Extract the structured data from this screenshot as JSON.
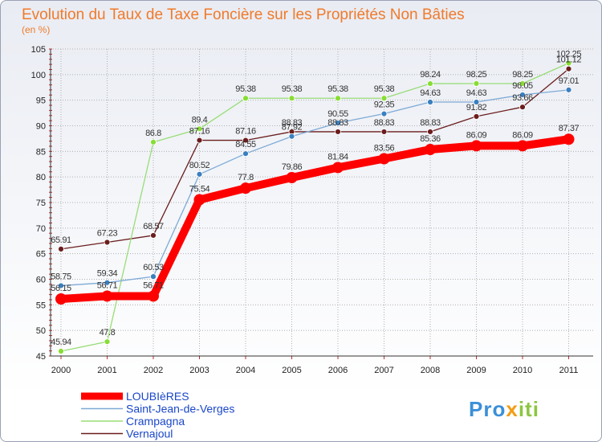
{
  "chart_data": {
    "type": "line",
    "title": "Evolution du Taux de Taxe Foncière sur les Propriétés Non Bâties",
    "subtitle": "(en %)",
    "categories": [
      "2000",
      "2001",
      "2002",
      "2003",
      "2004",
      "2005",
      "2006",
      "2007",
      "2008",
      "2009",
      "2010",
      "2011"
    ],
    "ylim": [
      45,
      105
    ],
    "yticks": [
      "45",
      "50",
      "55",
      "60",
      "65",
      "70",
      "75",
      "80",
      "85",
      "90",
      "95",
      "100",
      "105"
    ],
    "grid": true,
    "legend_position": "bottom-left",
    "series": [
      {
        "name": "Vernajoul",
        "color": "#6b1d1d",
        "point_color": "#6b1d1d",
        "values": [
          65.91,
          67.23,
          68.57,
          87.16,
          87.16,
          88.83,
          88.83,
          88.83,
          88.83,
          91.82,
          93.66,
          101.12
        ],
        "labels": [
          "65.91",
          "67.23",
          "68.57",
          "87.16",
          "87.16",
          "88.83",
          "88.83",
          "88.83",
          "88.83",
          "91.82",
          "93.66",
          "101.12"
        ]
      },
      {
        "name": "Crampagna",
        "color": "#99dd77",
        "point_color": "#88dd33",
        "values": [
          45.94,
          47.8,
          86.8,
          89.4,
          95.38,
          95.38,
          95.38,
          95.38,
          98.24,
          98.25,
          98.25,
          102.25
        ],
        "labels": [
          "45.94",
          "47.8",
          "86.8",
          "89.4",
          "95.38",
          "95.38",
          "95.38",
          "95.38",
          "98.24",
          "98.25",
          "98.25",
          "102.25"
        ]
      },
      {
        "name": "Saint-Jean-de-Verges",
        "color": "#7eaad6",
        "point_color": "#3a7fc0",
        "values": [
          58.75,
          59.34,
          60.53,
          80.52,
          84.55,
          87.92,
          90.55,
          92.35,
          94.63,
          94.63,
          96.05,
          97.01
        ],
        "labels": [
          "58.75",
          "59.34",
          "60.53",
          "80.52",
          "84.55",
          "87.92",
          "90.55",
          "92.35",
          "94.63",
          "94.63",
          "96.05",
          "97.01"
        ]
      },
      {
        "name": "LOUBIèRES",
        "color": "#ff0000",
        "point_color": "#ff0000",
        "values": [
          56.15,
          56.71,
          56.71,
          75.54,
          77.8,
          79.86,
          81.84,
          83.56,
          85.36,
          86.09,
          86.09,
          87.37
        ],
        "labels": [
          "56.15",
          "56.71",
          "56.71",
          "75.54",
          "77.8",
          "79.86",
          "81.84",
          "83.56",
          "85.36",
          "86.09",
          "86.09",
          "87.37"
        ]
      }
    ],
    "legend": [
      "LOUBIèRES",
      "Saint-Jean-de-Verges",
      "Crampagna",
      "Vernajoul"
    ]
  },
  "logo": {
    "text_1": "Pro",
    "text_2": "x",
    "text_3": "iti"
  },
  "colors": {
    "title": "#f07a2a",
    "legend_text": "#1a47c8",
    "grid": "#b0b0b0"
  }
}
